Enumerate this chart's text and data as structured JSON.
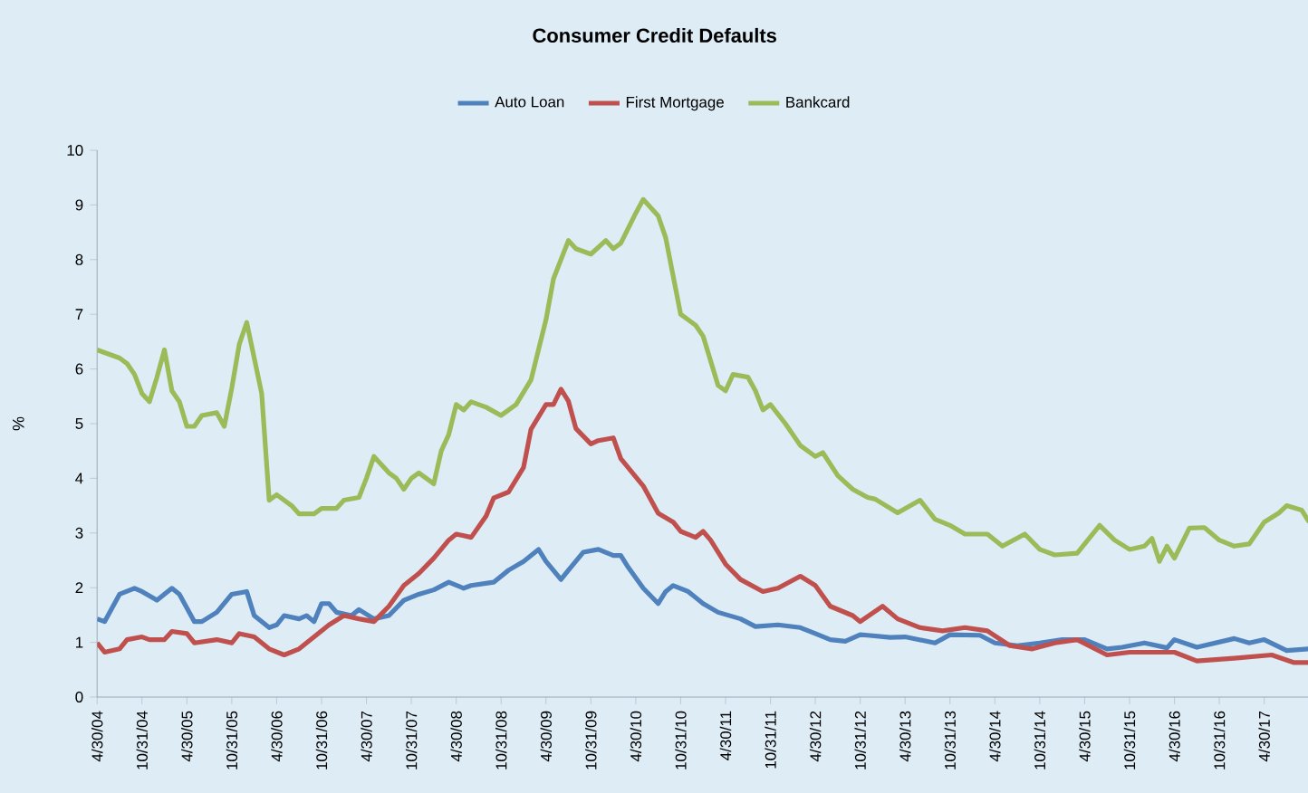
{
  "chart_data": {
    "type": "line",
    "title": "Consumer Credit Defaults",
    "ylabel": "%",
    "legend": "top",
    "xlim": [
      "2004-04",
      "2017-10"
    ],
    "xticks": [
      {
        "value": "2004-04",
        "label": "4/30/04"
      },
      {
        "value": "2004-10",
        "label": "10/31/04"
      },
      {
        "value": "2005-04",
        "label": "4/30/05"
      },
      {
        "value": "2005-10",
        "label": "10/31/05"
      },
      {
        "value": "2006-04",
        "label": "4/30/06"
      },
      {
        "value": "2006-10",
        "label": "10/31/06"
      },
      {
        "value": "2007-04",
        "label": "4/30/07"
      },
      {
        "value": "2007-10",
        "label": "10/31/07"
      },
      {
        "value": "2008-04",
        "label": "4/30/08"
      },
      {
        "value": "2008-10",
        "label": "10/31/08"
      },
      {
        "value": "2009-04",
        "label": "4/30/09"
      },
      {
        "value": "2009-10",
        "label": "10/31/09"
      },
      {
        "value": "2010-04",
        "label": "4/30/10"
      },
      {
        "value": "2010-10",
        "label": "10/31/10"
      },
      {
        "value": "2011-04",
        "label": "4/30/11"
      },
      {
        "value": "2011-10",
        "label": "10/31/11"
      },
      {
        "value": "2012-04",
        "label": "4/30/12"
      },
      {
        "value": "2012-10",
        "label": "10/31/12"
      },
      {
        "value": "2013-04",
        "label": "4/30/13"
      },
      {
        "value": "2013-10",
        "label": "10/31/13"
      },
      {
        "value": "2014-04",
        "label": "4/30/14"
      },
      {
        "value": "2014-10",
        "label": "10/31/14"
      },
      {
        "value": "2015-04",
        "label": "4/30/15"
      },
      {
        "value": "2015-10",
        "label": "10/31/15"
      },
      {
        "value": "2016-04",
        "label": "4/30/16"
      },
      {
        "value": "2016-10",
        "label": "10/31/16"
      },
      {
        "value": "2017-04",
        "label": "4/30/17"
      }
    ],
    "ylim": [
      0,
      10
    ],
    "yticks": [
      0,
      1,
      2,
      3,
      4,
      5,
      6,
      7,
      8,
      9,
      10
    ],
    "series": [
      {
        "name": "Auto Loan",
        "color": "#4f81bd",
        "x": [
          "2004-04",
          "2004-05",
          "2004-07",
          "2004-09",
          "2004-10",
          "2004-12",
          "2005-02",
          "2005-03",
          "2005-05",
          "2005-06",
          "2005-08",
          "2005-10",
          "2005-12",
          "2006-01",
          "2006-03",
          "2006-04",
          "2006-05",
          "2006-07",
          "2006-08",
          "2006-09",
          "2006-10",
          "2006-11",
          "2006-12",
          "2007-02",
          "2007-03",
          "2007-05",
          "2007-07",
          "2007-09",
          "2007-11",
          "2008-01",
          "2008-03",
          "2008-05",
          "2008-06",
          "2008-09",
          "2008-11",
          "2009-01",
          "2009-03",
          "2009-04",
          "2009-06",
          "2009-07",
          "2009-09",
          "2009-11",
          "2010-01",
          "2010-02",
          "2010-03",
          "2010-05",
          "2010-07",
          "2010-08",
          "2010-09",
          "2010-11",
          "2011-01",
          "2011-03",
          "2011-06",
          "2011-08",
          "2011-11",
          "2012-02",
          "2012-04",
          "2012-06",
          "2012-08",
          "2012-10",
          "2012-11",
          "2013-02",
          "2013-04",
          "2013-08",
          "2013-10",
          "2014-02",
          "2014-04",
          "2014-07",
          "2014-10",
          "2015-01",
          "2015-04",
          "2015-07",
          "2015-09",
          "2015-12",
          "2016-03",
          "2016-04",
          "2016-07",
          "2016-12",
          "2017-02",
          "2017-04",
          "2017-07",
          "2017-10"
        ],
        "values": [
          1.43,
          1.38,
          1.88,
          1.99,
          1.93,
          1.77,
          1.99,
          1.88,
          1.38,
          1.38,
          1.55,
          1.88,
          1.93,
          1.49,
          1.27,
          1.32,
          1.49,
          1.43,
          1.49,
          1.38,
          1.71,
          1.71,
          1.55,
          1.49,
          1.6,
          1.43,
          1.49,
          1.77,
          1.88,
          1.96,
          2.1,
          1.99,
          2.04,
          2.1,
          2.32,
          2.48,
          2.7,
          2.48,
          2.15,
          2.32,
          2.65,
          2.7,
          2.59,
          2.59,
          2.37,
          1.99,
          1.71,
          1.93,
          2.04,
          1.93,
          1.71,
          1.55,
          1.43,
          1.29,
          1.32,
          1.27,
          1.16,
          1.05,
          1.02,
          1.14,
          1.13,
          1.09,
          1.1,
          0.99,
          1.14,
          1.13,
          0.99,
          0.94,
          0.99,
          1.05,
          1.05,
          0.88,
          0.91,
          0.99,
          0.9,
          1.05,
          0.91,
          1.07,
          0.99,
          1.05,
          0.85,
          0.88
        ]
      },
      {
        "name": "First Mortgage",
        "color": "#c0504d",
        "x": [
          "2004-04",
          "2004-05",
          "2004-07",
          "2004-08",
          "2004-10",
          "2004-11",
          "2005-01",
          "2005-02",
          "2005-04",
          "2005-05",
          "2005-08",
          "2005-10",
          "2005-11",
          "2006-01",
          "2006-03",
          "2006-05",
          "2006-07",
          "2006-09",
          "2006-11",
          "2007-01",
          "2007-03",
          "2007-05",
          "2007-07",
          "2007-09",
          "2007-11",
          "2008-01",
          "2008-03",
          "2008-04",
          "2008-06",
          "2008-08",
          "2008-09",
          "2008-11",
          "2009-01",
          "2009-02",
          "2009-04",
          "2009-05",
          "2009-06",
          "2009-07",
          "2009-08",
          "2009-10",
          "2009-11",
          "2010-01",
          "2010-02",
          "2010-05",
          "2010-07",
          "2010-09",
          "2010-10",
          "2010-12",
          "2011-01",
          "2011-02",
          "2011-04",
          "2011-06",
          "2011-09",
          "2011-11",
          "2012-02",
          "2012-04",
          "2012-06",
          "2012-09",
          "2012-10",
          "2013-01",
          "2013-03",
          "2013-06",
          "2013-09",
          "2013-12",
          "2014-03",
          "2014-06",
          "2014-09",
          "2014-12",
          "2015-03",
          "2015-07",
          "2015-10",
          "2016-01",
          "2016-04",
          "2016-07",
          "2016-12",
          "2017-05",
          "2017-08",
          "2017-10"
        ],
        "values": [
          0.99,
          0.82,
          0.88,
          1.05,
          1.1,
          1.05,
          1.05,
          1.2,
          1.16,
          0.99,
          1.05,
          0.99,
          1.16,
          1.1,
          0.88,
          0.77,
          0.88,
          1.1,
          1.32,
          1.49,
          1.43,
          1.38,
          1.66,
          2.04,
          2.26,
          2.54,
          2.87,
          2.98,
          2.92,
          3.31,
          3.64,
          3.75,
          4.2,
          4.9,
          5.35,
          5.35,
          5.63,
          5.41,
          4.91,
          4.63,
          4.69,
          4.74,
          4.36,
          3.86,
          3.36,
          3.2,
          3.03,
          2.92,
          3.03,
          2.87,
          2.43,
          2.15,
          1.93,
          1.99,
          2.21,
          2.04,
          1.66,
          1.49,
          1.38,
          1.66,
          1.43,
          1.27,
          1.21,
          1.27,
          1.21,
          0.94,
          0.88,
          0.99,
          1.05,
          0.77,
          0.82,
          0.82,
          0.82,
          0.66,
          0.71,
          0.77,
          0.63,
          0.63
        ]
      },
      {
        "name": "Bankcard",
        "color": "#9bbb59",
        "x": [
          "2004-04",
          "2004-07",
          "2004-08",
          "2004-09",
          "2004-10",
          "2004-11",
          "2004-12",
          "2005-01",
          "2005-02",
          "2005-03",
          "2005-04",
          "2005-05",
          "2005-06",
          "2005-08",
          "2005-09",
          "2005-10",
          "2005-11",
          "2005-12",
          "2006-02",
          "2006-03",
          "2006-04",
          "2006-06",
          "2006-07",
          "2006-09",
          "2006-10",
          "2006-12",
          "2007-01",
          "2007-03",
          "2007-04",
          "2007-05",
          "2007-07",
          "2007-08",
          "2007-09",
          "2007-10",
          "2007-11",
          "2008-01",
          "2008-02",
          "2008-03",
          "2008-04",
          "2008-05",
          "2008-06",
          "2008-08",
          "2008-10",
          "2008-12",
          "2009-02",
          "2009-04",
          "2009-05",
          "2009-07",
          "2009-08",
          "2009-10",
          "2009-12",
          "2010-01",
          "2010-02",
          "2010-04",
          "2010-05",
          "2010-07",
          "2010-08",
          "2010-09",
          "2010-10",
          "2010-12",
          "2011-01",
          "2011-03",
          "2011-04",
          "2011-05",
          "2011-07",
          "2011-08",
          "2011-09",
          "2011-10",
          "2011-12",
          "2012-02",
          "2012-04",
          "2012-05",
          "2012-07",
          "2012-09",
          "2012-11",
          "2012-12",
          "2013-03",
          "2013-06",
          "2013-08",
          "2013-10",
          "2013-12",
          "2014-03",
          "2014-05",
          "2014-08",
          "2014-10",
          "2014-12",
          "2015-03",
          "2015-06",
          "2015-08",
          "2015-10",
          "2015-12",
          "2016-01",
          "2016-02",
          "2016-03",
          "2016-04",
          "2016-06",
          "2016-08",
          "2016-10",
          "2016-12",
          "2017-02",
          "2017-04",
          "2017-06",
          "2017-07",
          "2017-09",
          "2017-10"
        ],
        "values": [
          6.35,
          6.2,
          6.1,
          5.9,
          5.55,
          5.4,
          5.85,
          6.35,
          5.6,
          5.4,
          4.95,
          4.95,
          5.15,
          5.2,
          4.95,
          5.65,
          6.45,
          6.85,
          5.55,
          3.6,
          3.7,
          3.5,
          3.35,
          3.35,
          3.45,
          3.45,
          3.6,
          3.65,
          4.0,
          4.4,
          4.1,
          4.0,
          3.8,
          4.0,
          4.1,
          3.9,
          4.5,
          4.8,
          5.35,
          5.25,
          5.4,
          5.3,
          5.15,
          5.35,
          5.8,
          6.9,
          7.65,
          8.35,
          8.2,
          8.1,
          8.35,
          8.2,
          8.3,
          8.85,
          9.1,
          8.8,
          8.4,
          7.7,
          7.0,
          6.8,
          6.6,
          5.7,
          5.6,
          5.9,
          5.85,
          5.6,
          5.25,
          5.35,
          5.0,
          4.6,
          4.4,
          4.47,
          4.05,
          3.8,
          3.65,
          3.62,
          3.37,
          3.6,
          3.25,
          3.14,
          2.98,
          2.98,
          2.76,
          2.98,
          2.7,
          2.6,
          2.63,
          3.14,
          2.87,
          2.7,
          2.76,
          2.9,
          2.48,
          2.76,
          2.54,
          3.09,
          3.1,
          2.87,
          2.76,
          2.8,
          3.2,
          3.37,
          3.5,
          3.42,
          3.2
        ]
      }
    ]
  }
}
